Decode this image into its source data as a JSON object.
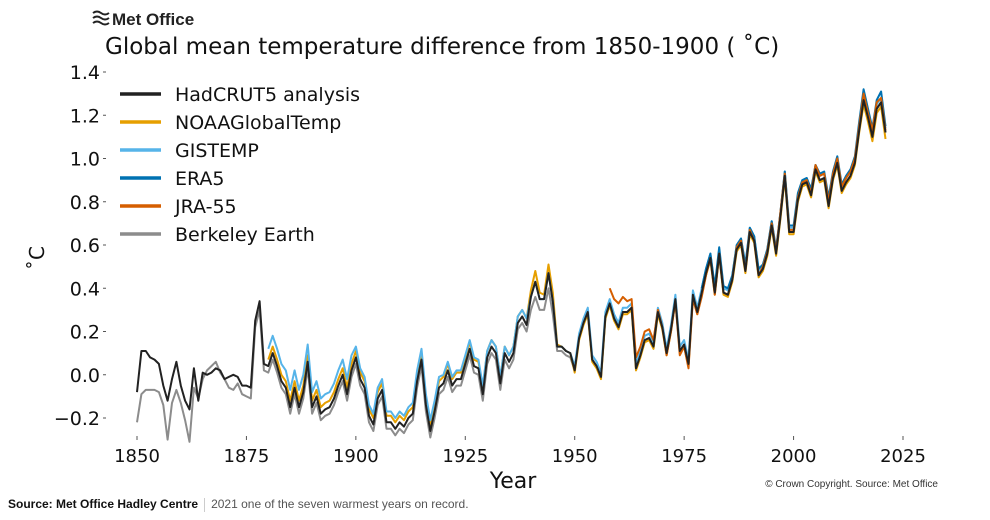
{
  "logo_text": "Met Office",
  "caption": {
    "source": "Source: Met Office Hadley Centre",
    "description": "2021 one of the seven warmest years on record."
  },
  "copyright": "© Crown Copyright. Source: Met Office",
  "chart_data": {
    "type": "line",
    "title": "Global mean temperature difference from 1850-1900 ( ˚C)",
    "xlabel": "Year",
    "ylabel": "˚C",
    "xlim": [
      1850,
      2025
    ],
    "ylim": [
      -0.2,
      1.4
    ],
    "xticks": [
      "1850",
      "1875",
      "1900",
      "1925",
      "1950",
      "1975",
      "2000",
      "2025"
    ],
    "yticks": [
      "1.4",
      "1.2",
      "1.0",
      "0.8",
      "0.6",
      "0.4",
      "0.2",
      "0.0",
      "−0.2"
    ],
    "grid": false,
    "legend_position": "top-left",
    "series": [
      {
        "name": "Berkeley Earth",
        "color": "#8c8c8c",
        "start_year": 1850,
        "values": [
          -0.22,
          -0.09,
          -0.07,
          -0.07,
          -0.07,
          -0.08,
          -0.14,
          -0.3,
          -0.13,
          -0.07,
          -0.13,
          -0.21,
          -0.31,
          -0.06,
          -0.11,
          -0.02,
          0.02,
          0.04,
          0.06,
          0.01,
          -0.02,
          -0.06,
          -0.07,
          -0.04,
          -0.09,
          -0.1,
          -0.11,
          0.22,
          0.3,
          0.02,
          0.01,
          0.07,
          0.01,
          -0.06,
          -0.09,
          -0.18,
          -0.09,
          -0.18,
          -0.11,
          0.03,
          -0.18,
          -0.13,
          -0.21,
          -0.19,
          -0.18,
          -0.14,
          -0.08,
          -0.03,
          -0.12,
          -0.01,
          0.05,
          -0.05,
          -0.09,
          -0.22,
          -0.26,
          -0.14,
          -0.1,
          -0.25,
          -0.25,
          -0.28,
          -0.25,
          -0.27,
          -0.23,
          -0.21,
          -0.06,
          0.04,
          -0.17,
          -0.29,
          -0.2,
          -0.09,
          -0.07,
          -0.01,
          -0.08,
          -0.05,
          -0.05,
          0.02,
          0.09,
          0.01,
          0.0,
          -0.12,
          0.05,
          0.1,
          0.07,
          -0.07,
          0.07,
          0.03,
          0.07,
          0.21,
          0.24,
          0.2,
          0.3,
          0.36,
          0.3,
          0.3,
          0.4,
          0.28,
          0.11,
          0.11,
          0.09,
          0.08,
          0.02,
          0.17,
          0.24,
          0.29,
          0.07,
          0.04,
          -0.01,
          0.27,
          0.33,
          0.26,
          0.22,
          0.29,
          0.29,
          0.31,
          0.03,
          0.09,
          0.16,
          0.17,
          0.13,
          0.29,
          0.22,
          0.1,
          0.21,
          0.35,
          0.11,
          0.14,
          0.05,
          0.37,
          0.29,
          0.38,
          0.47,
          0.54,
          0.38,
          0.56,
          0.38,
          0.37,
          0.44,
          0.58,
          0.61,
          0.48,
          0.66,
          0.62,
          0.46,
          0.49,
          0.56,
          0.69,
          0.56,
          0.73,
          0.92,
          0.66,
          0.66,
          0.81,
          0.88,
          0.89,
          0.83,
          0.95,
          0.9,
          0.91,
          0.78,
          0.91,
          0.98,
          0.85,
          0.89,
          0.92,
          0.98,
          1.13,
          1.27,
          1.19,
          1.1,
          1.23,
          1.26,
          1.12
        ]
      },
      {
        "name": "NOAAGlobalTemp",
        "color": "#e69f00",
        "start_year": 1880,
        "values": [
          0.07,
          0.13,
          0.07,
          0.0,
          -0.03,
          -0.12,
          -0.03,
          -0.12,
          -0.05,
          0.09,
          -0.12,
          -0.07,
          -0.15,
          -0.13,
          -0.12,
          -0.08,
          -0.02,
          0.03,
          -0.06,
          0.05,
          0.11,
          0.01,
          -0.03,
          -0.16,
          -0.2,
          -0.08,
          -0.04,
          -0.19,
          -0.19,
          -0.22,
          -0.19,
          -0.21,
          -0.17,
          -0.15,
          0.0,
          0.1,
          -0.11,
          -0.23,
          -0.14,
          -0.03,
          -0.01,
          0.05,
          -0.02,
          0.01,
          0.01,
          0.08,
          0.15,
          0.07,
          0.06,
          -0.06,
          0.11,
          0.16,
          0.13,
          -0.01,
          0.13,
          0.09,
          0.13,
          0.27,
          0.3,
          0.26,
          0.39,
          0.48,
          0.38,
          0.37,
          0.51,
          0.38,
          0.14,
          0.13,
          0.11,
          0.1,
          0.01,
          0.16,
          0.23,
          0.28,
          0.06,
          0.03,
          -0.02,
          0.26,
          0.32,
          0.25,
          0.21,
          0.28,
          0.28,
          0.3,
          0.02,
          0.08,
          0.15,
          0.16,
          0.12,
          0.28,
          0.21,
          0.09,
          0.2,
          0.34,
          0.1,
          0.13,
          0.04,
          0.36,
          0.28,
          0.37,
          0.46,
          0.53,
          0.37,
          0.55,
          0.37,
          0.36,
          0.43,
          0.57,
          0.6,
          0.47,
          0.65,
          0.61,
          0.45,
          0.48,
          0.55,
          0.68,
          0.55,
          0.72,
          0.91,
          0.65,
          0.65,
          0.8,
          0.87,
          0.88,
          0.82,
          0.94,
          0.89,
          0.9,
          0.77,
          0.9,
          0.97,
          0.84,
          0.88,
          0.91,
          0.97,
          1.12,
          1.25,
          1.17,
          1.08,
          1.21,
          1.24,
          1.09
        ]
      },
      {
        "name": "GISTEMP",
        "color": "#56b4e9",
        "start_year": 1880,
        "values": [
          0.12,
          0.18,
          0.12,
          0.05,
          0.02,
          -0.07,
          0.02,
          -0.07,
          0.0,
          0.14,
          -0.08,
          -0.03,
          -0.11,
          -0.09,
          -0.08,
          -0.04,
          0.02,
          0.07,
          -0.02,
          0.09,
          0.13,
          0.03,
          -0.01,
          -0.14,
          -0.18,
          -0.06,
          -0.02,
          -0.17,
          -0.17,
          -0.2,
          -0.17,
          -0.19,
          -0.15,
          -0.13,
          0.02,
          0.12,
          -0.09,
          -0.21,
          -0.12,
          -0.01,
          0.0,
          0.06,
          -0.01,
          0.02,
          0.02,
          0.09,
          0.16,
          0.08,
          0.07,
          -0.05,
          0.11,
          0.16,
          0.13,
          -0.01,
          0.13,
          0.09,
          0.13,
          0.27,
          0.3,
          0.26,
          0.36,
          0.43,
          0.35,
          0.35,
          0.47,
          0.34,
          0.13,
          0.13,
          0.11,
          0.1,
          0.04,
          0.19,
          0.26,
          0.31,
          0.09,
          0.06,
          0.01,
          0.29,
          0.35,
          0.28,
          0.24,
          0.31,
          0.31,
          0.33,
          0.05,
          0.11,
          0.18,
          0.19,
          0.15,
          0.31,
          0.24,
          0.12,
          0.23,
          0.37,
          0.13,
          0.16,
          0.07,
          0.39,
          0.31,
          0.4,
          0.49,
          0.56,
          0.4,
          0.58,
          0.4,
          0.39,
          0.46,
          0.6,
          0.63,
          0.5,
          0.68,
          0.64,
          0.48,
          0.51,
          0.58,
          0.71,
          0.58,
          0.75,
          0.94,
          0.68,
          0.68,
          0.83,
          0.9,
          0.91,
          0.85,
          0.97,
          0.92,
          0.93,
          0.8,
          0.93,
          1.0,
          0.87,
          0.91,
          0.94,
          1.0,
          1.15,
          1.29,
          1.21,
          1.12,
          1.25,
          1.28,
          1.14
        ]
      },
      {
        "name": "ERA5",
        "color": "#0072b2",
        "start_year": 1979,
        "values": [
          0.4,
          0.49,
          0.56,
          0.41,
          0.59,
          0.41,
          0.4,
          0.46,
          0.6,
          0.63,
          0.51,
          0.68,
          0.64,
          0.49,
          0.51,
          0.58,
          0.71,
          0.58,
          0.75,
          0.94,
          0.69,
          0.69,
          0.84,
          0.9,
          0.91,
          0.86,
          0.97,
          0.93,
          0.94,
          0.82,
          0.94,
          1.01,
          0.88,
          0.92,
          0.95,
          1.01,
          1.17,
          1.32,
          1.23,
          1.14,
          1.27,
          1.31,
          1.15
        ]
      },
      {
        "name": "JRA-55",
        "color": "#d55e00",
        "start_year": 1958,
        "values": [
          0.4,
          0.35,
          0.33,
          0.36,
          0.34,
          0.35,
          0.08,
          0.13,
          0.2,
          0.21,
          0.16,
          0.3,
          0.22,
          0.09,
          0.2,
          0.34,
          0.09,
          0.13,
          0.03,
          0.35,
          0.28,
          0.36,
          0.46,
          0.54,
          0.37,
          0.56,
          0.38,
          0.37,
          0.44,
          0.59,
          0.62,
          0.48,
          0.67,
          0.62,
          0.46,
          0.5,
          0.57,
          0.7,
          0.57,
          0.75,
          0.93,
          0.67,
          0.67,
          0.82,
          0.89,
          0.9,
          0.84,
          0.97,
          0.92,
          0.93,
          0.8,
          0.93,
          1.0,
          0.87,
          0.91,
          0.94,
          1.0,
          1.15,
          1.3,
          1.21,
          1.13,
          1.26,
          1.28,
          1.13
        ]
      },
      {
        "name": "HadCRUT5 analysis",
        "color": "#222222",
        "start_year": 1850,
        "values": [
          -0.08,
          0.11,
          0.11,
          0.08,
          0.07,
          0.05,
          -0.05,
          -0.12,
          -0.02,
          0.06,
          -0.05,
          -0.12,
          -0.16,
          0.03,
          -0.12,
          0.01,
          0.0,
          0.01,
          0.03,
          0.02,
          -0.02,
          -0.01,
          0.0,
          -0.01,
          -0.05,
          -0.05,
          -0.06,
          0.25,
          0.34,
          0.05,
          0.04,
          0.1,
          0.04,
          -0.03,
          -0.06,
          -0.15,
          -0.06,
          -0.15,
          -0.08,
          0.06,
          -0.15,
          -0.1,
          -0.18,
          -0.16,
          -0.15,
          -0.11,
          -0.05,
          0.0,
          -0.09,
          0.02,
          0.08,
          -0.02,
          -0.06,
          -0.19,
          -0.23,
          -0.11,
          -0.07,
          -0.22,
          -0.22,
          -0.25,
          -0.22,
          -0.24,
          -0.2,
          -0.18,
          -0.03,
          0.07,
          -0.14,
          -0.26,
          -0.17,
          -0.06,
          -0.04,
          0.02,
          -0.05,
          -0.02,
          -0.02,
          0.05,
          0.12,
          0.04,
          0.03,
          -0.09,
          0.08,
          0.13,
          0.1,
          -0.04,
          0.1,
          0.06,
          0.1,
          0.24,
          0.27,
          0.23,
          0.36,
          0.43,
          0.35,
          0.35,
          0.47,
          0.34,
          0.13,
          0.13,
          0.11,
          0.1,
          0.02,
          0.17,
          0.24,
          0.29,
          0.07,
          0.04,
          -0.01,
          0.27,
          0.33,
          0.26,
          0.22,
          0.29,
          0.29,
          0.31,
          0.03,
          0.09,
          0.16,
          0.17,
          0.13,
          0.29,
          0.22,
          0.1,
          0.21,
          0.35,
          0.11,
          0.14,
          0.05,
          0.37,
          0.29,
          0.38,
          0.47,
          0.54,
          0.38,
          0.56,
          0.38,
          0.37,
          0.44,
          0.58,
          0.61,
          0.48,
          0.66,
          0.62,
          0.46,
          0.49,
          0.56,
          0.69,
          0.56,
          0.73,
          0.92,
          0.66,
          0.66,
          0.81,
          0.88,
          0.89,
          0.83,
          0.95,
          0.9,
          0.91,
          0.78,
          0.91,
          0.98,
          0.85,
          0.89,
          0.92,
          0.98,
          1.13,
          1.27,
          1.19,
          1.1,
          1.23,
          1.26,
          1.12
        ]
      }
    ],
    "legend_order": [
      "HadCRUT5 analysis",
      "NOAAGlobalTemp",
      "GISTEMP",
      "ERA5",
      "JRA-55",
      "Berkeley Earth"
    ]
  }
}
